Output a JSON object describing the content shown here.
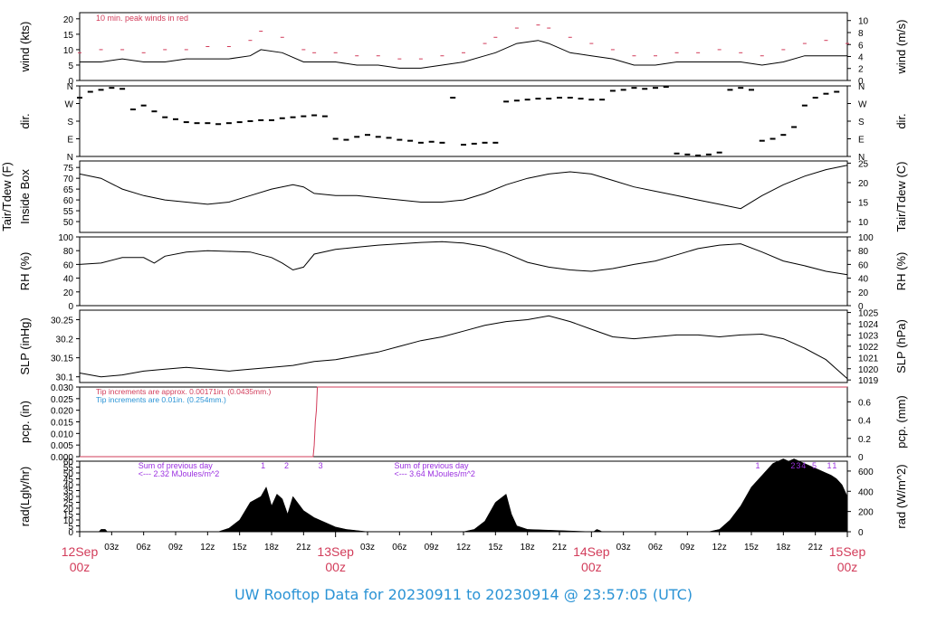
{
  "title": "UW Rooftop Data for 20230911  to  20230914 @ 23:57:05  (UTC)",
  "colors": {
    "accent_red": "#d23c5a",
    "accent_blue": "#2a93d5",
    "purple": "#9b30e0",
    "line": "#000000"
  },
  "x_axis": {
    "range_hours": [
      0,
      72
    ],
    "minor_ticks": [
      {
        "h": 3,
        "label": "03z"
      },
      {
        "h": 6,
        "label": "06z"
      },
      {
        "h": 9,
        "label": "09z"
      },
      {
        "h": 12,
        "label": "12z"
      },
      {
        "h": 15,
        "label": "15z"
      },
      {
        "h": 18,
        "label": "18z"
      },
      {
        "h": 21,
        "label": "21z"
      },
      {
        "h": 27,
        "label": "03z"
      },
      {
        "h": 30,
        "label": "06z"
      },
      {
        "h": 33,
        "label": "09z"
      },
      {
        "h": 36,
        "label": "12z"
      },
      {
        "h": 39,
        "label": "15z"
      },
      {
        "h": 42,
        "label": "18z"
      },
      {
        "h": 45,
        "label": "21z"
      },
      {
        "h": 51,
        "label": "03z"
      },
      {
        "h": 54,
        "label": "06z"
      },
      {
        "h": 57,
        "label": "09z"
      },
      {
        "h": 60,
        "label": "12z"
      },
      {
        "h": 63,
        "label": "15z"
      },
      {
        "h": 66,
        "label": "18z"
      },
      {
        "h": 69,
        "label": "21z"
      }
    ],
    "major_ticks": [
      {
        "h": 0,
        "date": "12Sep",
        "time": "00z"
      },
      {
        "h": 24,
        "date": "13Sep",
        "time": "00z"
      },
      {
        "h": 48,
        "date": "14Sep",
        "time": "00z"
      },
      {
        "h": 72,
        "date": "15Sep",
        "time": "00z"
      }
    ]
  },
  "chart_data": [
    {
      "id": "wind",
      "type": "line",
      "ylabel": "wind (kts)",
      "ylabel_right": "wind (m/s)",
      "ylim": [
        0,
        22
      ],
      "yticks": [
        0,
        5,
        10,
        15,
        20
      ],
      "yticks_right": [
        {
          "v": 0,
          "label": "0"
        },
        {
          "v": 3.89,
          "label": "2"
        },
        {
          "v": 7.78,
          "label": "4"
        },
        {
          "v": 11.66,
          "label": "6"
        },
        {
          "v": 15.55,
          "label": "8"
        },
        {
          "v": 19.44,
          "label": "10"
        }
      ],
      "annotation": "10 min. peak winds in red",
      "x_hours": [
        0,
        2,
        4,
        6,
        8,
        10,
        12,
        14,
        16,
        17,
        19,
        21,
        22,
        24,
        26,
        28,
        30,
        32,
        34,
        36,
        38,
        39,
        41,
        43,
        44,
        46,
        48,
        50,
        52,
        54,
        56,
        58,
        60,
        62,
        64,
        66,
        68,
        70,
        72
      ],
      "series": [
        {
          "role": "mean",
          "values": [
            6,
            6,
            7,
            6,
            6,
            7,
            7,
            7,
            8,
            10,
            9,
            6,
            6,
            6,
            5,
            5,
            4,
            4,
            5,
            6,
            8,
            9,
            12,
            13,
            12,
            9,
            8,
            7,
            5,
            5,
            6,
            6,
            6,
            6,
            5,
            6,
            8,
            8,
            8
          ]
        },
        {
          "role": "peak",
          "values": [
            9,
            10,
            10,
            9,
            10,
            10,
            11,
            11,
            13,
            16,
            14,
            10,
            9,
            9,
            8,
            8,
            7,
            7,
            8,
            9,
            12,
            14,
            17,
            18,
            17,
            14,
            12,
            10,
            8,
            8,
            9,
            9,
            10,
            9,
            8,
            10,
            12,
            13,
            12
          ]
        }
      ]
    },
    {
      "id": "dir",
      "type": "scatter",
      "ylabel": "dir.",
      "ylabel_right": "dir.",
      "ylim": [
        0,
        360
      ],
      "yticks": [
        {
          "v": 0,
          "label": "N"
        },
        {
          "v": 90,
          "label": "E"
        },
        {
          "v": 180,
          "label": "S"
        },
        {
          "v": 270,
          "label": "W"
        },
        {
          "v": 360,
          "label": "N"
        }
      ],
      "x_hours": [
        0,
        1,
        2,
        3,
        4,
        5,
        6,
        7,
        8,
        9,
        10,
        11,
        12,
        13,
        14,
        15,
        16,
        17,
        18,
        19,
        20,
        21,
        22,
        23,
        24,
        25,
        26,
        27,
        28,
        29,
        30,
        31,
        32,
        33,
        34,
        35,
        36,
        37,
        38,
        39,
        40,
        41,
        42,
        43,
        44,
        45,
        46,
        47,
        48,
        49,
        50,
        51,
        52,
        53,
        54,
        55,
        56,
        57,
        58,
        59,
        60,
        61,
        62,
        63,
        64,
        65,
        66,
        67,
        68,
        69,
        70,
        71
      ],
      "values": [
        300,
        330,
        340,
        350,
        345,
        240,
        260,
        230,
        200,
        190,
        175,
        170,
        170,
        165,
        170,
        175,
        180,
        185,
        185,
        195,
        200,
        205,
        210,
        205,
        90,
        85,
        100,
        110,
        100,
        95,
        85,
        80,
        70,
        75,
        70,
        300,
        60,
        65,
        70,
        70,
        280,
        285,
        290,
        295,
        295,
        300,
        300,
        295,
        290,
        290,
        335,
        340,
        350,
        345,
        350,
        355,
        15,
        10,
        5,
        10,
        20,
        340,
        350,
        340,
        80,
        90,
        110,
        150,
        260,
        300,
        320,
        330
      ]
    },
    {
      "id": "temp",
      "type": "line",
      "ylabel_lines": [
        "Tair/Tdew (F)",
        "Inside Box"
      ],
      "ylabel_right": "Tair/Tdew (C)",
      "ylim": [
        45,
        78
      ],
      "yticks": [
        50,
        55,
        60,
        65,
        70,
        75
      ],
      "yticks_right": [
        {
          "v": 50,
          "label": "10"
        },
        {
          "v": 59,
          "label": "15"
        },
        {
          "v": 68,
          "label": "20"
        },
        {
          "v": 77,
          "label": "25"
        }
      ],
      "x_hours": [
        0,
        2,
        4,
        6,
        8,
        10,
        12,
        14,
        16,
        18,
        20,
        21,
        22,
        24,
        26,
        28,
        30,
        32,
        34,
        36,
        38,
        40,
        42,
        44,
        46,
        48,
        50,
        52,
        54,
        56,
        58,
        60,
        62,
        64,
        66,
        68,
        70,
        72
      ],
      "values": [
        72,
        70,
        65,
        62,
        60,
        59,
        58,
        59,
        62,
        65,
        67,
        66,
        63,
        62,
        62,
        61,
        60,
        59,
        59,
        60,
        63,
        67,
        70,
        72,
        73,
        72,
        69,
        66,
        64,
        62,
        60,
        58,
        56,
        62,
        67,
        71,
        74,
        76
      ]
    },
    {
      "id": "rh",
      "type": "line",
      "ylabel": "RH (%)",
      "ylabel_right": "RH (%)",
      "ylim": [
        0,
        100
      ],
      "yticks": [
        0,
        20,
        40,
        60,
        80,
        100
      ],
      "x_hours": [
        0,
        2,
        4,
        6,
        7,
        8,
        10,
        12,
        14,
        16,
        18,
        19,
        20,
        21,
        22,
        24,
        26,
        28,
        30,
        32,
        34,
        36,
        38,
        40,
        42,
        44,
        46,
        48,
        50,
        52,
        54,
        56,
        58,
        60,
        62,
        64,
        66,
        68,
        70,
        72
      ],
      "values": [
        60,
        62,
        70,
        70,
        62,
        72,
        78,
        80,
        79,
        78,
        70,
        62,
        52,
        56,
        75,
        82,
        85,
        88,
        90,
        92,
        93,
        91,
        86,
        76,
        63,
        56,
        52,
        50,
        54,
        60,
        65,
        74,
        83,
        88,
        90,
        78,
        65,
        58,
        50,
        45
      ]
    },
    {
      "id": "slp",
      "type": "line",
      "ylabel": "SLP (inHg)",
      "ylabel_right": "SLP (hPa)",
      "ylim": [
        30.085,
        30.275
      ],
      "yticks": [
        30.1,
        30.15,
        30.2,
        30.25
      ],
      "yticks_right": [
        {
          "v": 30.0917,
          "label": "1019"
        },
        {
          "v": 30.1212,
          "label": "1020"
        },
        {
          "v": 30.1508,
          "label": "1021"
        },
        {
          "v": 30.1803,
          "label": "1022"
        },
        {
          "v": 30.2098,
          "label": "1023"
        },
        {
          "v": 30.2394,
          "label": "1024"
        },
        {
          "v": 30.2689,
          "label": "1025"
        }
      ],
      "x_hours": [
        0,
        2,
        4,
        6,
        8,
        10,
        12,
        14,
        16,
        18,
        20,
        22,
        24,
        26,
        28,
        30,
        32,
        34,
        36,
        38,
        40,
        42,
        44,
        46,
        48,
        50,
        52,
        54,
        56,
        58,
        60,
        62,
        64,
        66,
        68,
        70,
        71,
        72
      ],
      "values": [
        30.11,
        30.1,
        30.105,
        30.115,
        30.12,
        30.125,
        30.12,
        30.115,
        30.12,
        30.125,
        30.13,
        30.14,
        30.145,
        30.155,
        30.165,
        30.18,
        30.195,
        30.205,
        30.22,
        30.235,
        30.245,
        30.25,
        30.26,
        30.245,
        30.225,
        30.205,
        30.2,
        30.205,
        30.21,
        30.21,
        30.205,
        30.21,
        30.212,
        30.2,
        30.175,
        30.145,
        30.12,
        30.095
      ]
    },
    {
      "id": "pcp",
      "type": "line",
      "ylabel": "pcp. (in)",
      "ylabel_right": "pcp. (mm)",
      "ylim": [
        0,
        0.03
      ],
      "yticks": [
        "0.000",
        "0.005",
        "0.010",
        "0.015",
        "0.020",
        "0.025",
        "0.030"
      ],
      "yticks_right": [
        {
          "v": 0,
          "label": "0"
        },
        {
          "v": 0.007874,
          "label": "0.2"
        },
        {
          "v": 0.015748,
          "label": "0.4"
        },
        {
          "v": 0.023622,
          "label": "0.6"
        }
      ],
      "notes": [
        {
          "text": "Tip increments are approx. 0.00171in. (0.0435mm.)",
          "color": "#d23c5a"
        },
        {
          "text": "Tip increments are 0.01in. (0.254mm.)",
          "color": "#2a93d5"
        }
      ],
      "x_hours": [
        0,
        21.9,
        22.0,
        22.1,
        22.2,
        22.3,
        72
      ],
      "values": [
        0,
        0,
        0.005,
        0.015,
        0.02,
        0.03,
        0.03
      ]
    },
    {
      "id": "rad",
      "type": "area",
      "ylabel": "rad(Lgly/hr)",
      "ylabel_right": "rad (W/m^2)",
      "ylim": [
        0,
        60
      ],
      "yticks": [
        0,
        5,
        10,
        15,
        20,
        25,
        30,
        35,
        40,
        45,
        50,
        55,
        60
      ],
      "yticks_right": [
        {
          "v": 0,
          "label": "0"
        },
        {
          "v": 17.2,
          "label": "200"
        },
        {
          "v": 34.4,
          "label": "400"
        },
        {
          "v": 51.6,
          "label": "600"
        }
      ],
      "annotations": [
        {
          "lines": [
            "Sum of previous day",
            "<--- 2.32 MJoules/m^2"
          ],
          "h": 5.5
        },
        {
          "lines": [
            "Sum of previous day",
            "<--- 3.64 MJoules/m^2"
          ],
          "h": 29.5
        }
      ],
      "markers": [
        {
          "h": 17.2,
          "label": "1"
        },
        {
          "h": 19.4,
          "label": "2"
        },
        {
          "h": 22.6,
          "label": "3"
        },
        {
          "h": 63.6,
          "label": "1"
        },
        {
          "h": 66.9,
          "label": "2"
        },
        {
          "h": 67.4,
          "label": "3"
        },
        {
          "h": 67.9,
          "label": "4"
        },
        {
          "h": 68.9,
          "label": "5"
        },
        {
          "h": 70.3,
          "label": "1"
        },
        {
          "h": 70.8,
          "label": "1"
        }
      ],
      "x_hours": [
        0,
        1.8,
        2,
        2.4,
        2.6,
        13,
        14,
        15,
        16,
        17,
        17.5,
        18,
        18.5,
        19,
        19.5,
        20,
        21,
        22,
        23,
        24,
        25,
        26,
        27,
        36,
        37,
        38,
        39,
        40,
        40.5,
        41,
        42,
        48,
        48.2,
        48.5,
        48.8,
        49,
        59,
        60,
        61,
        62,
        63,
        64,
        65,
        66,
        66.5,
        67,
        67.5,
        68,
        68.5,
        69,
        69.5,
        70,
        70.5,
        71,
        71.5,
        72
      ],
      "values": [
        0,
        0,
        2,
        2,
        0,
        0,
        3,
        10,
        25,
        30,
        38,
        22,
        32,
        28,
        15,
        30,
        18,
        12,
        8,
        4,
        2,
        1,
        0,
        0,
        2,
        9,
        25,
        32,
        15,
        5,
        2,
        0,
        0,
        2,
        1,
        0,
        0,
        2,
        10,
        22,
        38,
        48,
        58,
        62,
        60,
        62,
        60,
        58,
        56,
        54,
        52,
        50,
        48,
        45,
        40,
        30
      ]
    }
  ]
}
